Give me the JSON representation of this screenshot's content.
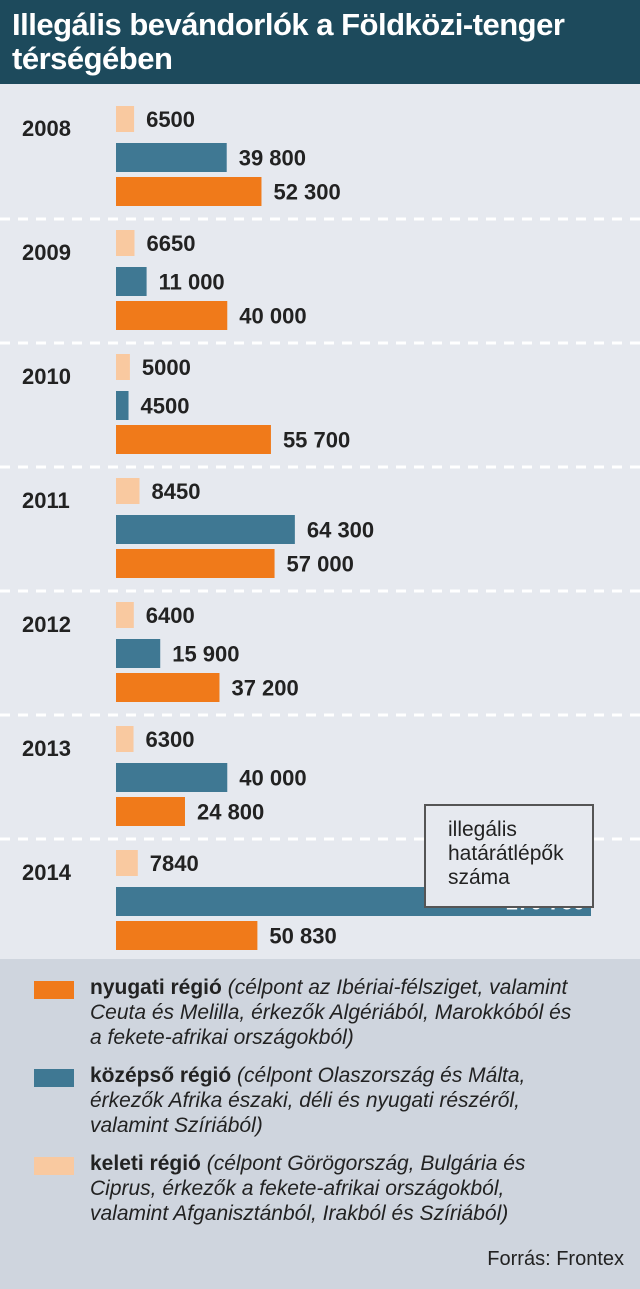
{
  "title": "Illegális bevándorlók a Földközi-tenger térségében",
  "colors": {
    "western": "#f07a1a",
    "central": "#3f7893",
    "eastern": "#f9c9a0",
    "header_bg": "#1d4a5c"
  },
  "chart_data": {
    "type": "bar",
    "orientation": "horizontal",
    "categories": [
      "2008",
      "2009",
      "2010",
      "2011",
      "2012",
      "2013",
      "2014"
    ],
    "series": [
      {
        "name": "keleti régió",
        "values": [
          6500,
          6650,
          5000,
          8450,
          6400,
          6300,
          7840
        ],
        "labels": [
          "6500",
          "6650",
          "5000",
          "8450",
          "6400",
          "6300",
          "7840"
        ]
      },
      {
        "name": "középső régió",
        "values": [
          39800,
          11000,
          4500,
          64300,
          15900,
          40000,
          170760
        ],
        "labels": [
          "39 800",
          "11 000",
          "4500",
          "64 300",
          "15 900",
          "40 000",
          "170 760"
        ]
      },
      {
        "name": "nyugati régió",
        "values": [
          52300,
          40000,
          55700,
          57000,
          37200,
          24800,
          50830
        ],
        "labels": [
          "52 300",
          "40 000",
          "55 700",
          "57 000",
          "37 200",
          "24 800",
          "50 830"
        ]
      }
    ],
    "grid": false,
    "legend": "bottom"
  },
  "note": {
    "lines": [
      "illegális",
      "határátlépők",
      "száma"
    ]
  },
  "legend": {
    "items": [
      {
        "name": "nyugati régió",
        "desc_lines": [
          "(célpont az Ibériai-félsziget, valamint",
          "Ceuta és Melilla, érkezők Algériából, Marokkóból és",
          "a fekete-afrikai országokból)"
        ]
      },
      {
        "name": "középső régió",
        "desc_lines": [
          "(célpont Olaszország és Málta,",
          "érkezők Afrika északi, déli és nyugati részéről,",
          "valamint Szíriából)"
        ]
      },
      {
        "name": "keleti régió",
        "desc_lines": [
          "(célpont Görögország, Bulgária és",
          "Ciprus, érkezők  a fekete-afrikai országokból,",
          "valamint Afganisztánból, Irakból és Szíriából)"
        ]
      }
    ]
  },
  "source": "Forrás: Frontex"
}
